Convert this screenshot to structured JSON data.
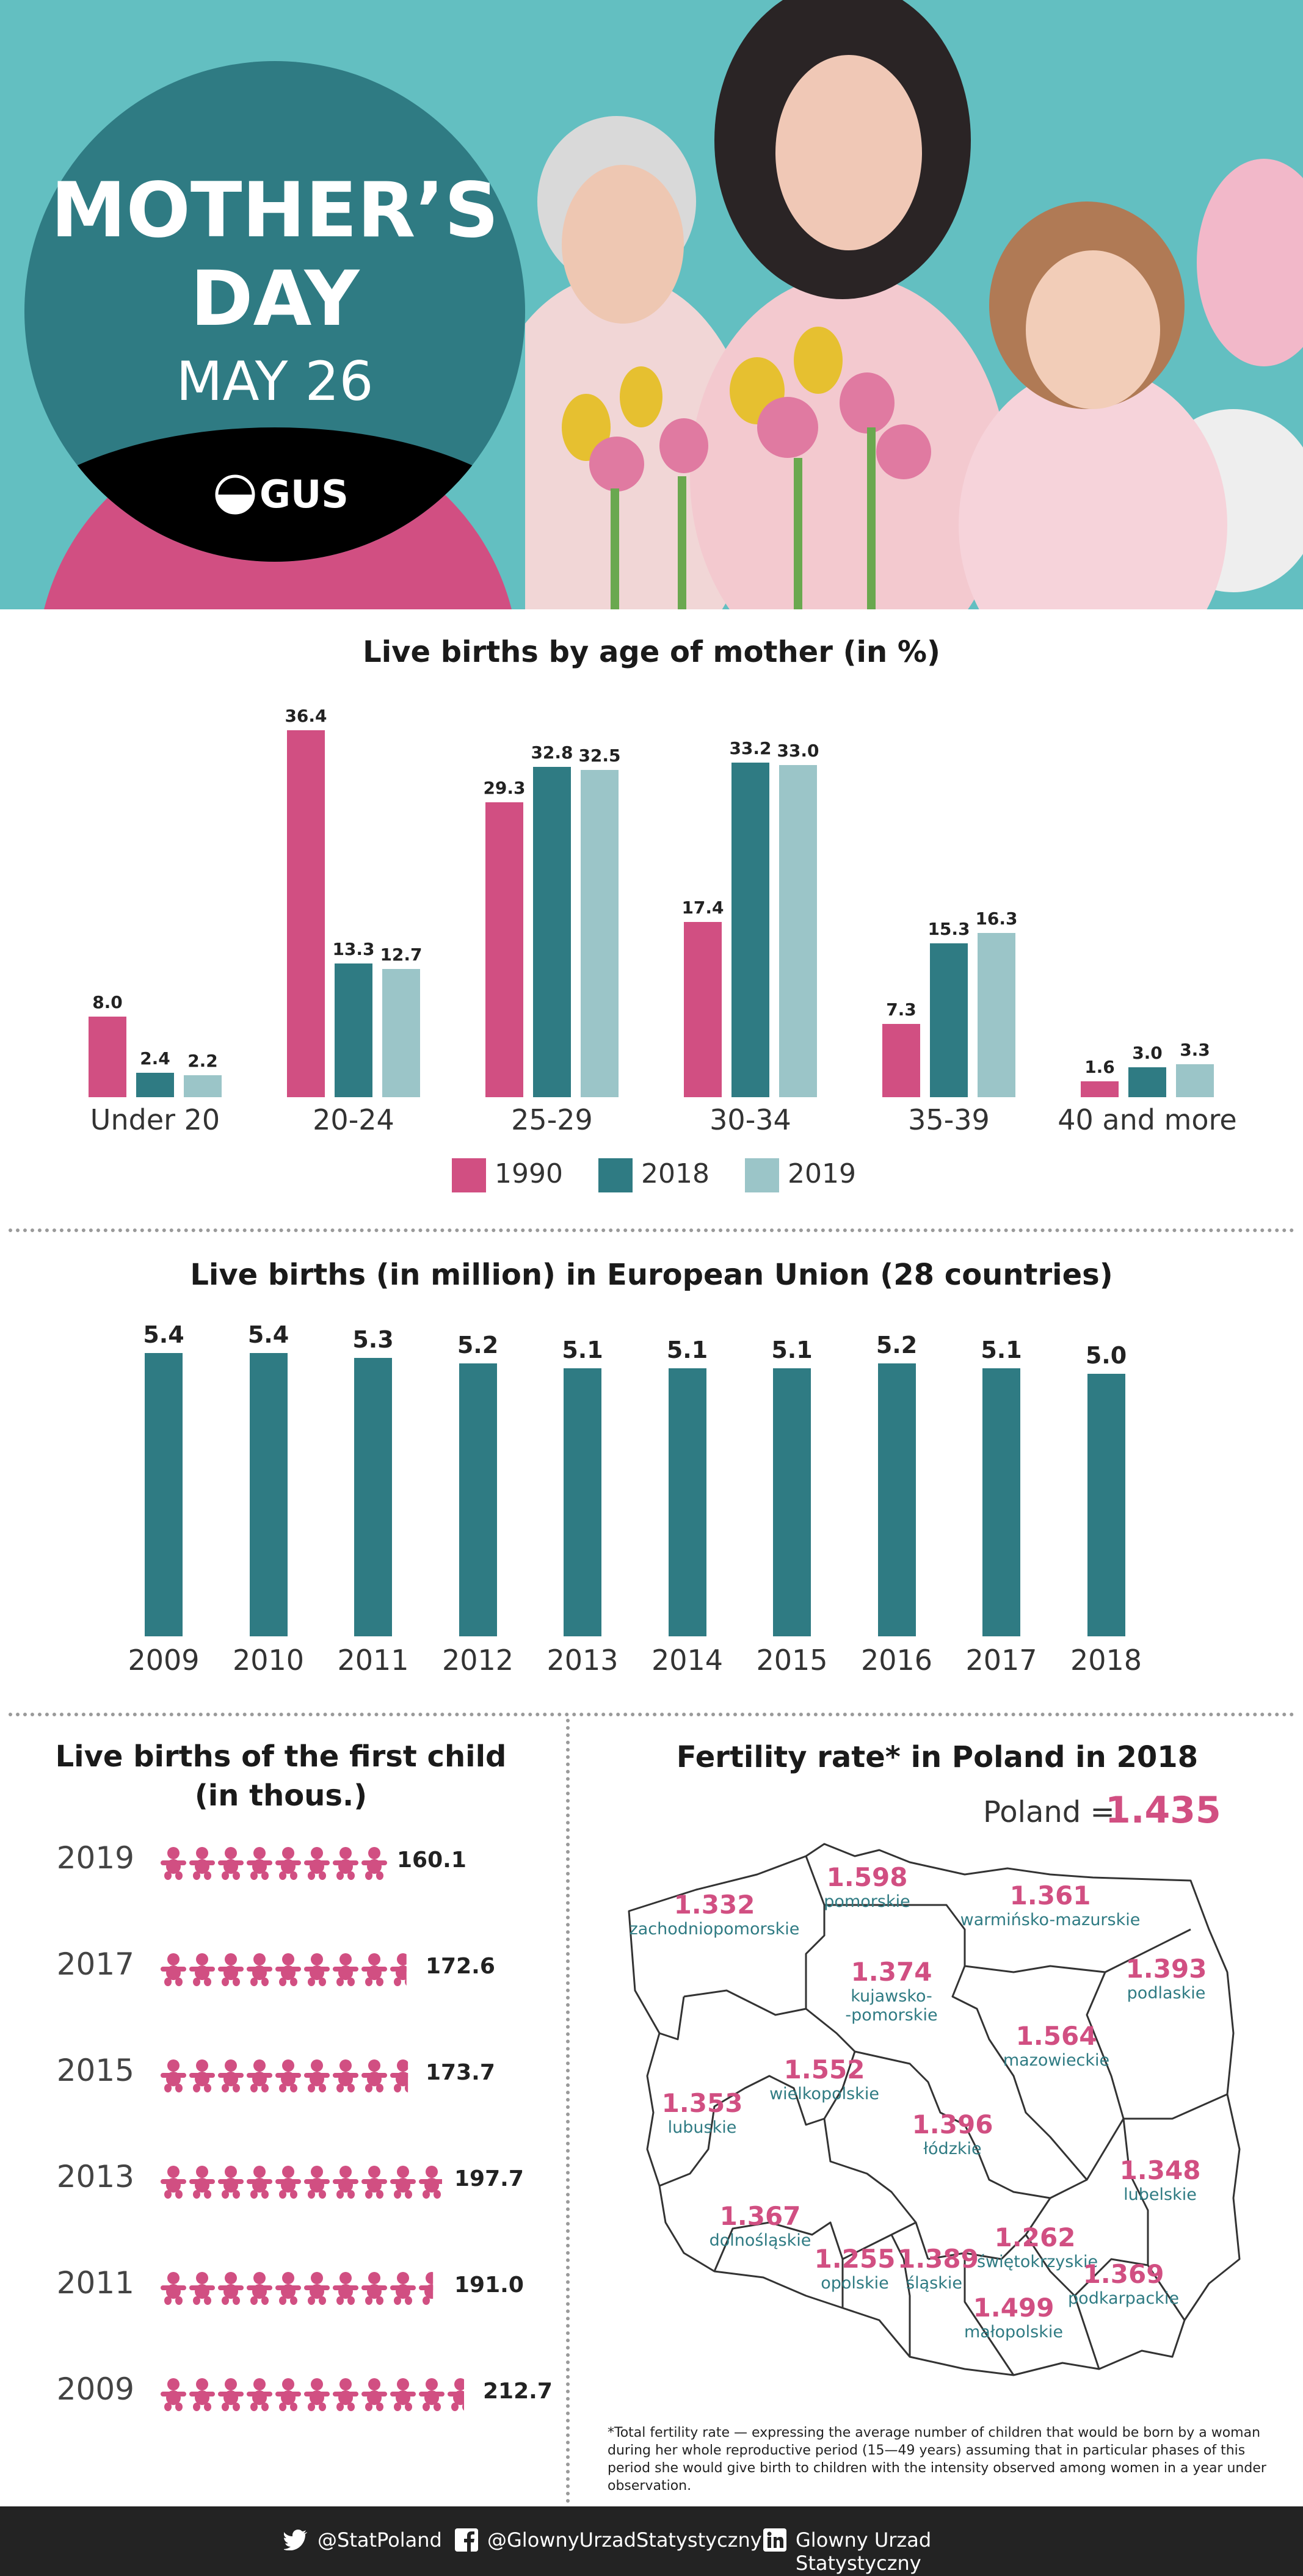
{
  "header": {
    "title_line1": "MOTHER’S",
    "title_line2": "DAY",
    "date": "MAY 26",
    "logo_text": "GUS"
  },
  "colors": {
    "pink": "#d14f82",
    "teal_dark": "#2f7b83",
    "teal_light": "#9bc5c8",
    "header_bg": "#63bfc1"
  },
  "chart_data": [
    {
      "type": "bar",
      "title": "Live births by age of mother (in %)",
      "categories": [
        "Under 20",
        "20-24",
        "25-29",
        "30-34",
        "35-39",
        "40 and more"
      ],
      "series": [
        {
          "name": "1990",
          "values": [
            8.0,
            36.4,
            29.3,
            17.4,
            7.3,
            1.6
          ],
          "color": "#d14f82"
        },
        {
          "name": "2018",
          "values": [
            2.4,
            13.3,
            32.8,
            33.2,
            15.3,
            3.0
          ],
          "color": "#2f7b83"
        },
        {
          "name": "2019",
          "values": [
            2.2,
            12.7,
            32.5,
            33.0,
            16.3,
            3.3
          ],
          "color": "#9bc5c8"
        }
      ],
      "ylim": [
        0,
        40
      ],
      "legend": "bottom"
    },
    {
      "type": "bar",
      "title": "Live births (in million) in European Union (28 countries)",
      "categories": [
        "2009",
        "2010",
        "2011",
        "2012",
        "2013",
        "2014",
        "2015",
        "2016",
        "2017",
        "2018"
      ],
      "values": [
        5.4,
        5.4,
        5.3,
        5.2,
        5.1,
        5.1,
        5.1,
        5.2,
        5.1,
        5.0
      ],
      "color": "#2f7b83"
    },
    {
      "type": "bar",
      "title": "Live births of the first child (in thous.)",
      "categories": [
        "2019",
        "2017",
        "2015",
        "2013",
        "2011",
        "2009"
      ],
      "values": [
        160.1,
        172.6,
        173.7,
        197.7,
        191.0,
        212.7
      ],
      "color": "#d14f82"
    }
  ],
  "fertility": {
    "title": "Fertility rate* in Poland in 2018",
    "poland_label": "Poland =",
    "poland_value": "1.435",
    "regions": [
      {
        "name": "zachodniopomorskie",
        "value": "1.332"
      },
      {
        "name": "pomorskie",
        "value": "1.598"
      },
      {
        "name": "warmińsko-mazurskie",
        "value": "1.361"
      },
      {
        "name": "podlaskie",
        "value": "1.393"
      },
      {
        "name": "kujawsko-\n-pomorskie",
        "value": "1.374"
      },
      {
        "name": "mazowieckie",
        "value": "1.564"
      },
      {
        "name": "wielkopolskie",
        "value": "1.552"
      },
      {
        "name": "lubuskie",
        "value": "1.353"
      },
      {
        "name": "łódzkie",
        "value": "1.396"
      },
      {
        "name": "lubelskie",
        "value": "1.348"
      },
      {
        "name": "dolnośląskie",
        "value": "1.367"
      },
      {
        "name": "opolskie",
        "value": "1.255"
      },
      {
        "name": "śląskie",
        "value": "1.389"
      },
      {
        "name": "świętokrzyskie",
        "value": "1.262"
      },
      {
        "name": "podkarpackie",
        "value": "1.369"
      },
      {
        "name": "małopolskie",
        "value": "1.499"
      }
    ],
    "footnote": "*Total fertility rate — expressing the average number of children that would be born by a woman during her whole reproductive period (15—49 years) assuming that in particular phases of this period she would give birth to children with the intensity observed among women in a year under observation."
  },
  "footer": {
    "twitter": "@StatPoland",
    "facebook": "@GlownyUrzadStatystyczny",
    "linkedin": "Glowny Urzad Statystyczny"
  }
}
